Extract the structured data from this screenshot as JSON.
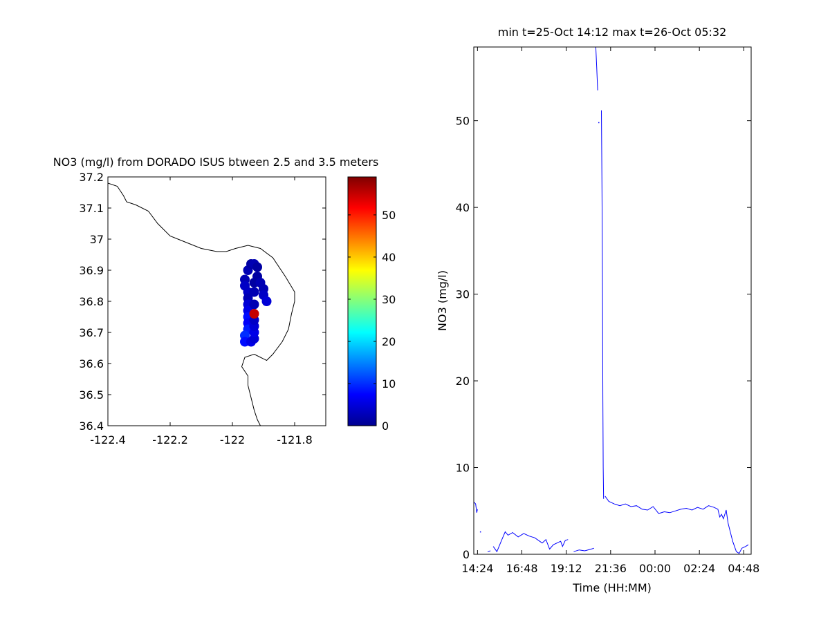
{
  "chart_data": [
    {
      "type": "scatter",
      "title": "NO3 (mg/l) from DORADO ISUS btween 2.5 and 3.5 meters",
      "xlim": [
        -122.4,
        -121.7
      ],
      "ylim": [
        36.4,
        37.2
      ],
      "xticks": [
        -122.4,
        -122.2,
        -122,
        -121.8
      ],
      "xtick_labels": [
        "-122.4",
        "-122.2",
        "-122",
        "-121.8"
      ],
      "yticks": [
        37.2,
        37.1,
        37,
        36.9,
        36.8,
        36.7,
        36.6,
        36.5,
        36.4
      ],
      "ytick_labels": [
        "37.2",
        "37.1",
        "37",
        "36.9",
        "36.8",
        "36.7",
        "36.6",
        "36.5",
        "36.4"
      ],
      "grid": false,
      "colorbar": {
        "colormap": "jet",
        "range": [
          0,
          59
        ],
        "ticks": [
          0,
          10,
          20,
          30,
          40,
          50
        ],
        "tick_labels": [
          "0",
          "10",
          "20",
          "30",
          "40",
          "50"
        ]
      },
      "coastline": [
        [
          -122.4,
          37.18
        ],
        [
          -122.37,
          37.17
        ],
        [
          -122.35,
          37.14
        ],
        [
          -122.34,
          37.12
        ],
        [
          -122.31,
          37.11
        ],
        [
          -122.27,
          37.09
        ],
        [
          -122.24,
          37.05
        ],
        [
          -122.2,
          37.01
        ],
        [
          -122.15,
          36.99
        ],
        [
          -122.1,
          36.97
        ],
        [
          -122.05,
          36.96
        ],
        [
          -122.02,
          36.96
        ],
        [
          -121.99,
          36.97
        ],
        [
          -121.95,
          36.98
        ],
        [
          -121.91,
          36.97
        ],
        [
          -121.87,
          36.94
        ],
        [
          -121.83,
          36.88
        ],
        [
          -121.8,
          36.83
        ],
        [
          -121.8,
          36.8
        ],
        [
          -121.81,
          36.76
        ],
        [
          -121.82,
          36.71
        ],
        [
          -121.84,
          36.67
        ],
        [
          -121.87,
          36.63
        ],
        [
          -121.89,
          36.61
        ],
        [
          -121.91,
          36.62
        ],
        [
          -121.93,
          36.63
        ],
        [
          -121.96,
          36.62
        ],
        [
          -121.97,
          36.59
        ],
        [
          -121.95,
          36.56
        ],
        [
          -121.95,
          36.53
        ],
        [
          -121.94,
          36.49
        ],
        [
          -121.93,
          36.45
        ],
        [
          -121.92,
          36.42
        ],
        [
          -121.91,
          36.4
        ]
      ],
      "points": [
        {
          "lon": -121.95,
          "lat": 36.9,
          "value": 3
        },
        {
          "lon": -121.94,
          "lat": 36.92,
          "value": 2
        },
        {
          "lon": -121.93,
          "lat": 36.92,
          "value": 3
        },
        {
          "lon": -121.92,
          "lat": 36.91,
          "value": 2
        },
        {
          "lon": -121.96,
          "lat": 36.87,
          "value": 3
        },
        {
          "lon": -121.96,
          "lat": 36.85,
          "value": 4
        },
        {
          "lon": -121.95,
          "lat": 36.83,
          "value": 4
        },
        {
          "lon": -121.95,
          "lat": 36.81,
          "value": 3
        },
        {
          "lon": -121.95,
          "lat": 36.79,
          "value": 5
        },
        {
          "lon": -121.95,
          "lat": 36.77,
          "value": 6
        },
        {
          "lon": -121.95,
          "lat": 36.75,
          "value": 8
        },
        {
          "lon": -121.95,
          "lat": 36.73,
          "value": 7
        },
        {
          "lon": -121.95,
          "lat": 36.71,
          "value": 9
        },
        {
          "lon": -121.96,
          "lat": 36.69,
          "value": 10
        },
        {
          "lon": -121.96,
          "lat": 36.67,
          "value": 8
        },
        {
          "lon": -121.94,
          "lat": 36.67,
          "value": 6
        },
        {
          "lon": -121.93,
          "lat": 36.68,
          "value": 5
        },
        {
          "lon": -121.93,
          "lat": 36.7,
          "value": 6
        },
        {
          "lon": -121.93,
          "lat": 36.72,
          "value": 5
        },
        {
          "lon": -121.93,
          "lat": 36.74,
          "value": 4
        },
        {
          "lon": -121.93,
          "lat": 36.79,
          "value": 3
        },
        {
          "lon": -121.93,
          "lat": 36.83,
          "value": 3
        },
        {
          "lon": -121.93,
          "lat": 36.86,
          "value": 2
        },
        {
          "lon": -121.92,
          "lat": 36.88,
          "value": 2
        },
        {
          "lon": -121.91,
          "lat": 36.86,
          "value": 3
        },
        {
          "lon": -121.9,
          "lat": 36.84,
          "value": 3
        },
        {
          "lon": -121.9,
          "lat": 36.82,
          "value": 4
        },
        {
          "lon": -121.89,
          "lat": 36.8,
          "value": 5
        },
        {
          "lon": -121.93,
          "lat": 36.76,
          "value": 55
        }
      ]
    },
    {
      "type": "line",
      "title": "min t=25-Oct 14:12 max t=26-Oct 05:32",
      "xlabel": "Time (HH:MM)",
      "ylabel": "NO3 (mg/l)",
      "xlim": [
        14.2,
        29.2
      ],
      "ylim": [
        0,
        58.5
      ],
      "xticks": [
        14.4,
        16.8,
        19.2,
        21.6,
        24.0,
        26.4,
        28.8
      ],
      "xtick_labels": [
        "14:24",
        "16:48",
        "19:12",
        "21:36",
        "00:00",
        "02:24",
        "04:48"
      ],
      "yticks": [
        0,
        10,
        20,
        30,
        40,
        50
      ],
      "ytick_labels": [
        "0",
        "10",
        "20",
        "30",
        "40",
        "50"
      ],
      "grid": false,
      "series": [
        {
          "color": "#0000ff",
          "segments": [
            [
              [
                14.22,
                6.0
              ],
              [
                14.3,
                5.8
              ],
              [
                14.36,
                4.8
              ],
              [
                14.4,
                5.2
              ]
            ],
            [
              [
                14.95,
                0.3
              ],
              [
                15.1,
                0.4
              ]
            ],
            [
              [
                15.25,
                0.9
              ],
              [
                15.45,
                0.3
              ],
              [
                15.7,
                1.6
              ],
              [
                15.9,
                2.6
              ],
              [
                16.05,
                2.2
              ],
              [
                16.3,
                2.5
              ],
              [
                16.6,
                2.0
              ],
              [
                16.9,
                2.4
              ],
              [
                17.2,
                2.1
              ],
              [
                17.5,
                1.9
              ],
              [
                17.9,
                1.3
              ],
              [
                18.1,
                1.7
              ],
              [
                18.3,
                0.6
              ],
              [
                18.5,
                1.1
              ],
              [
                18.7,
                1.3
              ],
              [
                18.9,
                1.5
              ],
              [
                19.0,
                0.9
              ],
              [
                19.15,
                1.6
              ],
              [
                19.3,
                1.7
              ]
            ],
            [
              [
                19.6,
                0.3
              ],
              [
                19.9,
                0.5
              ],
              [
                20.2,
                0.4
              ],
              [
                20.55,
                0.6
              ],
              [
                20.7,
                0.7
              ]
            ],
            [
              [
                20.8,
                58.5
              ],
              [
                20.85,
                56.0
              ],
              [
                20.9,
                53.5
              ]
            ],
            [
              [
                21.1,
                51.2
              ],
              [
                21.12,
                46.0
              ],
              [
                21.14,
                40.0
              ],
              [
                21.16,
                30.0
              ],
              [
                21.18,
                18.0
              ],
              [
                21.2,
                10.0
              ],
              [
                21.22,
                6.4
              ]
            ],
            [
              [
                21.3,
                6.7
              ],
              [
                21.5,
                6.1
              ],
              [
                21.8,
                5.8
              ],
              [
                22.1,
                5.6
              ],
              [
                22.4,
                5.8
              ],
              [
                22.7,
                5.5
              ],
              [
                23.0,
                5.6
              ],
              [
                23.3,
                5.2
              ],
              [
                23.6,
                5.1
              ],
              [
                23.9,
                5.5
              ],
              [
                24.2,
                4.7
              ],
              [
                24.5,
                4.9
              ],
              [
                24.8,
                4.8
              ],
              [
                25.1,
                5.0
              ],
              [
                25.4,
                5.2
              ],
              [
                25.7,
                5.3
              ],
              [
                26.0,
                5.1
              ],
              [
                26.3,
                5.4
              ],
              [
                26.6,
                5.2
              ],
              [
                26.9,
                5.6
              ],
              [
                27.2,
                5.4
              ],
              [
                27.4,
                5.2
              ],
              [
                27.5,
                4.3
              ],
              [
                27.6,
                4.6
              ],
              [
                27.7,
                4.1
              ],
              [
                27.85,
                5.1
              ],
              [
                27.95,
                3.6
              ],
              [
                28.2,
                1.5
              ],
              [
                28.4,
                0.3
              ],
              [
                28.55,
                0.1
              ],
              [
                28.7,
                0.7
              ],
              [
                28.9,
                0.9
              ],
              [
                29.05,
                1.1
              ]
            ]
          ],
          "dots": [
            [
              14.55,
              2.6
            ],
            [
              20.95,
              49.8
            ]
          ]
        }
      ]
    }
  ]
}
